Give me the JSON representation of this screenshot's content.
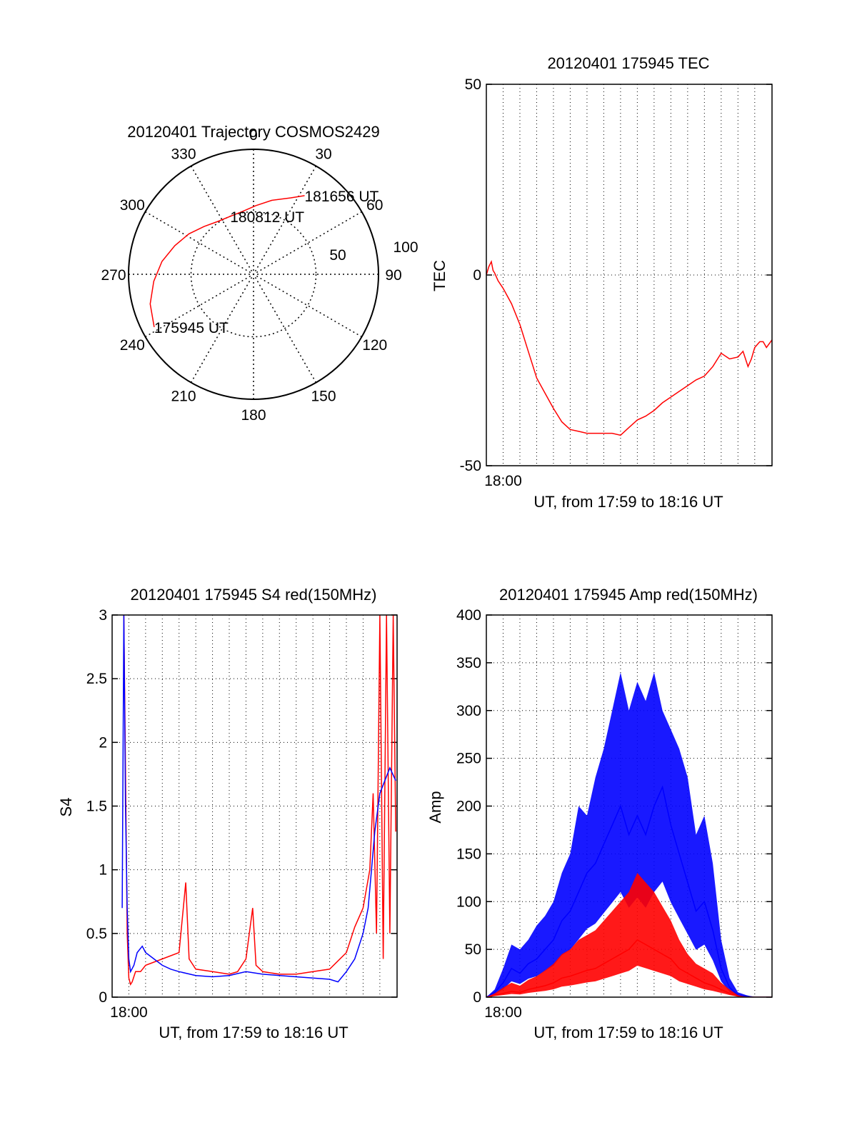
{
  "colors": {
    "red": "#ff0000",
    "blue": "#0000ff",
    "axis": "#000000",
    "grid": "#000000"
  },
  "chart_data": [
    {
      "type": "polar",
      "title": "20120401 Trajectory COSMOS2429",
      "azimuth_labels": [
        "0",
        "30",
        "60",
        "90",
        "120",
        "150",
        "180",
        "210",
        "240",
        "270",
        "300",
        "330"
      ],
      "radius_labels": [
        "50",
        "100"
      ],
      "radius_range": [
        0,
        100
      ],
      "series": [
        {
          "color": "red",
          "points": [
            [
              242,
              90
            ],
            [
              254,
              86
            ],
            [
              266,
              80
            ],
            [
              278,
              74
            ],
            [
              290,
              67
            ],
            [
              302,
              61
            ],
            [
              314,
              55
            ],
            [
              326,
              51
            ],
            [
              338,
              50
            ],
            [
              350,
              51
            ],
            [
              2,
              55
            ],
            [
              14,
              61
            ],
            [
              26,
              68
            ],
            [
              33,
              75
            ]
          ]
        }
      ],
      "annotations": [
        {
          "text": "181656 UT",
          "az": 33,
          "r": 75
        },
        {
          "text": "180812 UT",
          "az": 338,
          "r": 50
        },
        {
          "text": "175945 UT",
          "az": 242,
          "r": 90
        }
      ],
      "grid": true
    },
    {
      "type": "line",
      "title": "20120401 175945 TEC",
      "xlabel": "UT, from 17:59 to 18:16 UT",
      "ylabel": "TEC",
      "xtick_label": "18:00",
      "yticks": [
        "-50",
        "0",
        "50"
      ],
      "xlim": [
        0,
        17.03
      ],
      "ylim": [
        -50,
        50
      ],
      "grid": true,
      "series": [
        {
          "color": "red",
          "x": [
            0,
            0.15,
            0.3,
            0.4,
            0.5,
            0.7,
            1.0,
            1.5,
            2.0,
            2.5,
            3.0,
            3.5,
            4.0,
            4.5,
            5.0,
            5.5,
            6.0,
            6.5,
            7.0,
            7.5,
            8.0,
            8.5,
            9.0,
            9.5,
            10.0,
            10.5,
            11.0,
            11.5,
            12.0,
            12.5,
            13.0,
            13.5,
            14.0,
            14.5,
            15.0,
            15.3,
            15.6,
            15.8,
            16.0,
            16.3,
            16.5,
            16.7,
            17.03
          ],
          "y": [
            0,
            2.2,
            3.5,
            1.2,
            0.5,
            -1.5,
            -3.5,
            -7.5,
            -13,
            -20,
            -27,
            -31,
            -35,
            -38.5,
            -40.5,
            -41,
            -41.5,
            -41.5,
            -41.5,
            -41.5,
            -42,
            -40,
            -38,
            -37,
            -35.5,
            -33.5,
            -32,
            -30.5,
            -29,
            -27.5,
            -26.5,
            -24,
            -20.5,
            -22,
            -21.5,
            -20,
            -24,
            -22,
            -19,
            -17.5,
            -17.5,
            -19,
            -17
          ]
        }
      ]
    },
    {
      "type": "line",
      "title": "20120401 175945 S4 red(150MHz)",
      "xlabel": "UT, from 17:59 to 18:16 UT",
      "ylabel": "S4",
      "xtick_label": "18:00",
      "yticks": [
        "0",
        "0.5",
        "1",
        "1.5",
        "2",
        "2.5",
        "3"
      ],
      "xlim": [
        0,
        17.03
      ],
      "ylim": [
        0,
        3
      ],
      "grid": true,
      "series": [
        {
          "color": "red",
          "x": [
            0.7,
            0.8,
            0.9,
            1.0,
            1.1,
            1.2,
            1.4,
            1.7,
            2.0,
            3.0,
            4.0,
            4.4,
            4.6,
            5.0,
            6.0,
            7.0,
            7.5,
            8.0,
            8.4,
            8.6,
            9.0,
            10.0,
            11.0,
            12.0,
            13.0,
            14.0,
            14.5,
            15.0,
            15.4,
            15.6,
            15.8,
            16.0,
            16.2,
            16.4,
            16.6,
            16.8,
            16.95
          ],
          "y": [
            3,
            1.8,
            0.5,
            0.15,
            0.1,
            0.12,
            0.2,
            0.2,
            0.25,
            0.3,
            0.35,
            0.9,
            0.3,
            0.22,
            0.2,
            0.18,
            0.2,
            0.3,
            0.7,
            0.25,
            0.2,
            0.18,
            0.18,
            0.2,
            0.22,
            0.35,
            0.55,
            0.7,
            1.0,
            1.6,
            0.5,
            3,
            0.3,
            3,
            0.5,
            3,
            1.3
          ]
        },
        {
          "color": "blue",
          "x": [
            0.6,
            0.7,
            0.8,
            0.9,
            1.0,
            1.1,
            1.3,
            1.5,
            1.8,
            2.0,
            2.5,
            3.0,
            3.5,
            4.0,
            5.0,
            6.0,
            7.0,
            8.0,
            9.0,
            10.0,
            11.0,
            12.0,
            13.0,
            13.5,
            14.0,
            14.5,
            15.0,
            15.3,
            15.5,
            15.7,
            16.0,
            16.3,
            16.6,
            16.95
          ],
          "y": [
            0.7,
            3,
            1.5,
            0.7,
            0.3,
            0.2,
            0.25,
            0.35,
            0.4,
            0.35,
            0.3,
            0.25,
            0.22,
            0.2,
            0.17,
            0.16,
            0.17,
            0.2,
            0.18,
            0.17,
            0.16,
            0.15,
            0.14,
            0.12,
            0.2,
            0.3,
            0.5,
            0.7,
            1.0,
            1.3,
            1.6,
            1.7,
            1.8,
            1.7
          ]
        }
      ]
    },
    {
      "type": "line",
      "title": "20120401 175945 Amp red(150MHz)",
      "xlabel": "UT, from 17:59 to 18:16 UT",
      "ylabel": "Amp",
      "xtick_label": "18:00",
      "yticks": [
        "0",
        "50",
        "100",
        "150",
        "200",
        "250",
        "300",
        "350",
        "400"
      ],
      "xlim": [
        0,
        17.03
      ],
      "ylim": [
        0,
        400
      ],
      "grid": true,
      "series": [
        {
          "color": "blue",
          "x": [
            0.0,
            0.5,
            1.0,
            1.5,
            2.0,
            2.5,
            3.0,
            3.5,
            4.0,
            4.5,
            5.0,
            5.5,
            6.0,
            6.5,
            7.0,
            7.5,
            8.0,
            8.5,
            9.0,
            9.5,
            10.0,
            10.5,
            11.0,
            11.5,
            12.0,
            12.5,
            13.0,
            13.5,
            14.0,
            14.5,
            15.0,
            15.5,
            16.0,
            17.03
          ],
          "y": [
            0,
            5,
            15,
            30,
            25,
            35,
            40,
            50,
            60,
            80,
            90,
            110,
            130,
            140,
            160,
            180,
            200,
            170,
            190,
            170,
            200,
            220,
            180,
            150,
            120,
            90,
            100,
            70,
            30,
            10,
            2,
            1,
            0,
            0
          ],
          "upper": [
            0,
            8,
            30,
            55,
            50,
            60,
            75,
            85,
            100,
            130,
            150,
            200,
            190,
            230,
            260,
            300,
            340,
            300,
            330,
            310,
            340,
            300,
            280,
            260,
            230,
            170,
            190,
            140,
            60,
            20,
            5,
            2,
            0,
            0
          ]
        },
        {
          "color": "red",
          "x": [
            0.0,
            0.5,
            1.0,
            1.5,
            2.0,
            2.5,
            3.0,
            3.5,
            4.0,
            4.5,
            5.0,
            5.5,
            6.0,
            6.5,
            7.0,
            7.5,
            8.0,
            8.5,
            9.0,
            9.5,
            10.0,
            10.5,
            11.0,
            11.5,
            12.0,
            12.5,
            13.0,
            13.5,
            14.0,
            14.5,
            15.0,
            15.5,
            16.0,
            17.03
          ],
          "y": [
            0,
            2,
            4,
            6,
            5,
            8,
            10,
            12,
            15,
            20,
            22,
            25,
            28,
            30,
            35,
            40,
            45,
            50,
            60,
            55,
            50,
            45,
            40,
            30,
            25,
            20,
            15,
            12,
            8,
            4,
            1,
            0,
            0,
            0
          ],
          "upper": [
            0,
            4,
            10,
            15,
            12,
            18,
            22,
            28,
            35,
            45,
            50,
            60,
            65,
            70,
            80,
            90,
            100,
            110,
            130,
            120,
            110,
            95,
            80,
            60,
            45,
            35,
            30,
            25,
            15,
            8,
            2,
            0,
            0,
            0
          ]
        }
      ]
    }
  ]
}
